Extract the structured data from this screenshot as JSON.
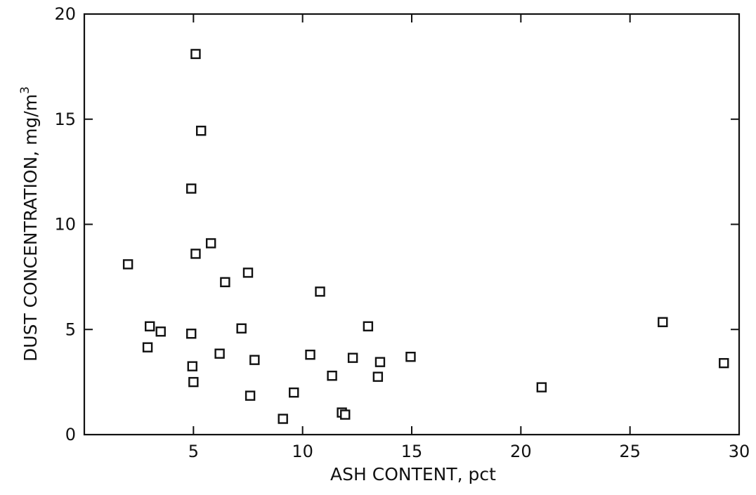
{
  "chart_data": {
    "type": "scatter",
    "xlabel": "ASH CONTENT, pct",
    "ylabel_main": "DUST CONCENTRATION, mg/m",
    "ylabel_sup": "3",
    "xlim": [
      0,
      30
    ],
    "ylim": [
      0,
      20
    ],
    "x_ticks": [
      5,
      10,
      15,
      20,
      25,
      30
    ],
    "y_ticks": [
      0,
      5,
      10,
      15,
      20
    ],
    "grid": false,
    "series": [
      {
        "points": [
          {
            "x": 2.0,
            "y": 8.1
          },
          {
            "x": 2.9,
            "y": 4.15
          },
          {
            "x": 3.0,
            "y": 5.15
          },
          {
            "x": 3.5,
            "y": 4.9
          },
          {
            "x": 4.9,
            "y": 11.7
          },
          {
            "x": 4.9,
            "y": 4.8
          },
          {
            "x": 4.95,
            "y": 3.25
          },
          {
            "x": 5.0,
            "y": 2.5
          },
          {
            "x": 5.1,
            "y": 18.1
          },
          {
            "x": 5.1,
            "y": 8.6
          },
          {
            "x": 5.35,
            "y": 14.45
          },
          {
            "x": 5.8,
            "y": 9.1
          },
          {
            "x": 6.2,
            "y": 3.85
          },
          {
            "x": 6.45,
            "y": 7.25
          },
          {
            "x": 7.2,
            "y": 5.05
          },
          {
            "x": 7.5,
            "y": 7.7
          },
          {
            "x": 7.6,
            "y": 1.85
          },
          {
            "x": 7.8,
            "y": 3.55
          },
          {
            "x": 9.1,
            "y": 0.75
          },
          {
            "x": 9.6,
            "y": 2.0
          },
          {
            "x": 10.35,
            "y": 3.8
          },
          {
            "x": 10.8,
            "y": 6.8
          },
          {
            "x": 11.35,
            "y": 2.8
          },
          {
            "x": 11.8,
            "y": 1.05
          },
          {
            "x": 11.95,
            "y": 0.95
          },
          {
            "x": 12.3,
            "y": 3.65
          },
          {
            "x": 13.0,
            "y": 5.15
          },
          {
            "x": 13.45,
            "y": 2.75
          },
          {
            "x": 13.55,
            "y": 3.45
          },
          {
            "x": 14.95,
            "y": 3.7
          },
          {
            "x": 20.95,
            "y": 2.25
          },
          {
            "x": 26.5,
            "y": 5.35
          },
          {
            "x": 29.3,
            "y": 3.4
          }
        ]
      }
    ]
  }
}
